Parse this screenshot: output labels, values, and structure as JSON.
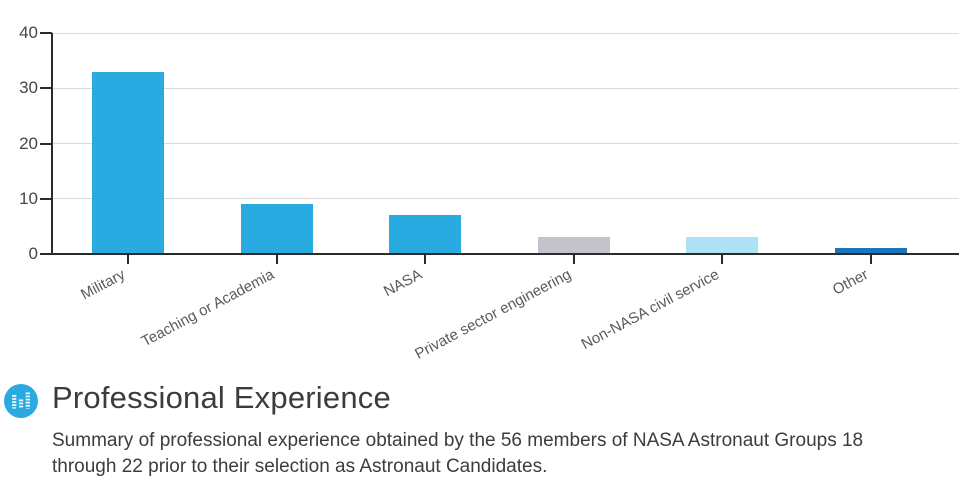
{
  "chart_data": {
    "type": "bar",
    "categories": [
      "Military",
      "Teaching or Academia",
      "NASA",
      "Private sector engineering",
      "Non-NASA civil service",
      "Other"
    ],
    "values": [
      33,
      9,
      7,
      3,
      3,
      1
    ],
    "bar_colors": [
      "#29abe2",
      "#29abe2",
      "#29abe2",
      "#c3c3cd",
      "#aee2f7",
      "#1b75bc"
    ],
    "title": "",
    "xlabel": "",
    "ylabel": "",
    "ylim": [
      0,
      40
    ],
    "yticks": [
      0,
      10,
      20,
      30,
      40
    ],
    "grid": true,
    "legend": "none",
    "axis_color": "#2b2b2b",
    "gridline_color": "#dadada"
  },
  "caption": {
    "icon": "bar-chart-icon",
    "accent_color": "#29abe2",
    "title": "Professional Experience",
    "description_lines": [
      "Summary of professional experience obtained by the 56 members of NASA Astronaut Groups 18",
      "through 22 prior to their selection as Astronaut Candidates."
    ]
  }
}
